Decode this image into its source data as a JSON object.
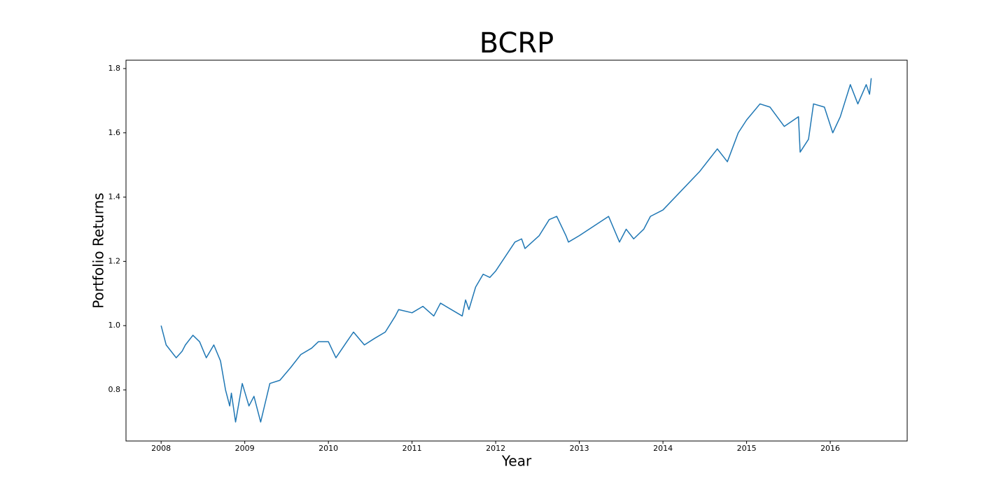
{
  "chart_data": {
    "type": "line",
    "title": "BCRP",
    "x_label": "Year",
    "y_label": "Portfolio Returns",
    "x": [
      2008.0,
      2008.06,
      2008.18,
      2008.25,
      2008.29,
      2008.38,
      2008.46,
      2008.54,
      2008.63,
      2008.71,
      2008.77,
      2008.82,
      2008.84,
      2008.89,
      2008.97,
      2009.05,
      2009.11,
      2009.19,
      2009.3,
      2009.42,
      2009.55,
      2009.67,
      2009.8,
      2009.88,
      2010.0,
      2010.09,
      2010.22,
      2010.3,
      2010.43,
      2010.55,
      2010.68,
      2010.8,
      2010.84,
      2011.0,
      2011.13,
      2011.26,
      2011.34,
      2011.6,
      2011.64,
      2011.68,
      2011.76,
      2011.85,
      2011.93,
      2012.0,
      2012.23,
      2012.31,
      2012.35,
      2012.52,
      2012.64,
      2012.73,
      2012.84,
      2012.87,
      2013.0,
      2013.35,
      2013.48,
      2013.56,
      2013.65,
      2013.77,
      2013.85,
      2014.0,
      2014.44,
      2014.65,
      2014.77,
      2014.9,
      2015.0,
      2015.16,
      2015.28,
      2015.45,
      2015.62,
      2015.64,
      2015.74,
      2015.8,
      2015.93,
      2016.03,
      2016.12,
      2016.24,
      2016.33,
      2016.43,
      2016.47,
      2016.49
    ],
    "values": [
      1.0,
      0.94,
      0.9,
      0.92,
      0.94,
      0.97,
      0.95,
      0.9,
      0.94,
      0.89,
      0.8,
      0.75,
      0.79,
      0.7,
      0.82,
      0.75,
      0.78,
      0.7,
      0.82,
      0.83,
      0.87,
      0.91,
      0.93,
      0.95,
      0.95,
      0.9,
      0.95,
      0.98,
      0.94,
      0.96,
      0.98,
      1.03,
      1.05,
      1.04,
      1.06,
      1.03,
      1.07,
      1.03,
      1.08,
      1.05,
      1.12,
      1.16,
      1.15,
      1.17,
      1.26,
      1.27,
      1.24,
      1.28,
      1.33,
      1.34,
      1.28,
      1.26,
      1.28,
      1.34,
      1.26,
      1.3,
      1.27,
      1.3,
      1.34,
      1.36,
      1.48,
      1.55,
      1.51,
      1.6,
      1.64,
      1.69,
      1.68,
      1.62,
      1.65,
      1.54,
      1.58,
      1.69,
      1.68,
      1.6,
      1.65,
      1.75,
      1.69,
      1.75,
      1.72,
      1.77
    ],
    "color": "#1f77b4",
    "xlim": [
      2007.58,
      2016.92
    ],
    "xticks": [
      2008,
      2009,
      2010,
      2011,
      2012,
      2013,
      2014,
      2015,
      2016
    ],
    "ylim": [
      0.641,
      1.826
    ],
    "yticks": [
      0.8,
      {
        "value": 1.0,
        "label": "1.0"
      },
      1.2,
      1.4,
      1.6,
      1.8
    ]
  }
}
